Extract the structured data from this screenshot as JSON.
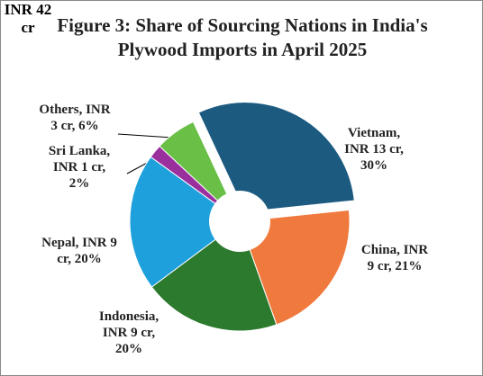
{
  "chart_data": {
    "type": "pie",
    "title": "Figure 3: Share of Sourcing Nations in India's Plywood Imports in April 2025",
    "center_label": "INR 42 cr",
    "categories": [
      "Vietnam, INR 13 cr, 30%",
      "China, INR 9 cr, 21%",
      "Indonesia, INR 9 cr, 20%",
      "Nepal, INR 9 cr, 20%",
      "Sri Lanka, INR 1 cr, 2%",
      "Others, INR 3 cr, 6%"
    ],
    "values": [
      30,
      21,
      20,
      20,
      2,
      6
    ],
    "colors": [
      "#1c5a80",
      "#f07a3e",
      "#2c7a2e",
      "#1ea0dc",
      "#9a2f9e",
      "#6abf47"
    ]
  }
}
